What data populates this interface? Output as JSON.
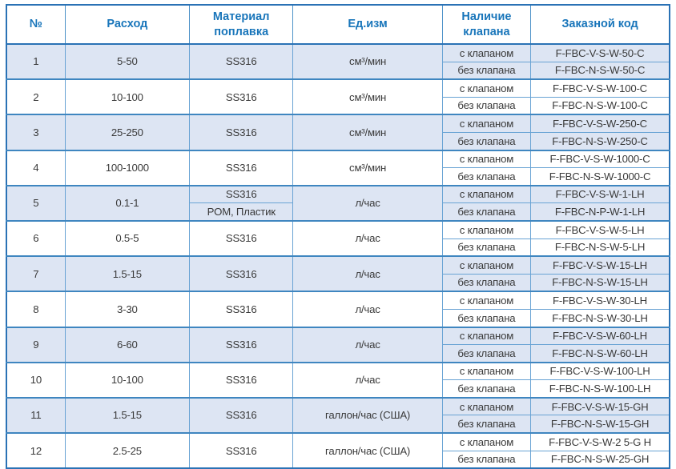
{
  "table": {
    "header": {
      "num": "№",
      "flow": "Расход",
      "material": "Материал поплавка",
      "unit": "Ед.изм",
      "valve": "Наличие клапана",
      "code": "Заказной код"
    },
    "valve_options": [
      "с клапаном",
      "без клапана"
    ],
    "rows": [
      {
        "num": "1",
        "flow": "5-50",
        "materials": [
          "SS316"
        ],
        "unit": "см³/мин",
        "codes": [
          "F-FBC-V-S-W-50-C",
          "F-FBC-N-S-W-50-C"
        ],
        "shaded": true
      },
      {
        "num": "2",
        "flow": "10-100",
        "materials": [
          "SS316"
        ],
        "unit": "см³/мин",
        "codes": [
          "F-FBC-V-S-W-100-C",
          "F-FBC-N-S-W-100-C"
        ],
        "shaded": false
      },
      {
        "num": "3",
        "flow": "25-250",
        "materials": [
          "SS316"
        ],
        "unit": "см³/мин",
        "codes": [
          "F-FBC-V-S-W-250-C",
          "F-FBC-N-S-W-250-C"
        ],
        "shaded": true
      },
      {
        "num": "4",
        "flow": "100-1000",
        "materials": [
          "SS316"
        ],
        "unit": "см³/мин",
        "codes": [
          "F-FBC-V-S-W-1000-C",
          "F-FBC-N-S-W-1000-C"
        ],
        "shaded": false
      },
      {
        "num": "5",
        "flow": "0.1-1",
        "materials": [
          "SS316",
          "POM, Пластик"
        ],
        "unit": "л/час",
        "codes": [
          "F-FBC-V-S-W-1-LH",
          "F-FBC-N-P-W-1-LH"
        ],
        "shaded": true
      },
      {
        "num": "6",
        "flow": "0.5-5",
        "materials": [
          "SS316"
        ],
        "unit": "л/час",
        "codes": [
          "F-FBC-V-S-W-5-LH",
          "F-FBC-N-S-W-5-LH"
        ],
        "shaded": false
      },
      {
        "num": "7",
        "flow": "1.5-15",
        "materials": [
          "SS316"
        ],
        "unit": "л/час",
        "codes": [
          "F-FBC-V-S-W-15-LH",
          "F-FBC-N-S-W-15-LH"
        ],
        "shaded": true
      },
      {
        "num": "8",
        "flow": "3-30",
        "materials": [
          "SS316"
        ],
        "unit": "л/час",
        "codes": [
          "F-FBC-V-S-W-30-LH",
          "F-FBC-N-S-W-30-LH"
        ],
        "shaded": false
      },
      {
        "num": "9",
        "flow": "6-60",
        "materials": [
          "SS316"
        ],
        "unit": "л/час",
        "codes": [
          "F-FBC-V-S-W-60-LH",
          "F-FBC-N-S-W-60-LH"
        ],
        "shaded": true
      },
      {
        "num": "10",
        "flow": "10-100",
        "materials": [
          "SS316"
        ],
        "unit": "л/час",
        "codes": [
          "F-FBC-V-S-W-100-LH",
          "F-FBC-N-S-W-100-LH"
        ],
        "shaded": false
      },
      {
        "num": "11",
        "flow": "1.5-15",
        "materials": [
          "SS316"
        ],
        "unit": "галлон/час (США)",
        "codes": [
          "F-FBC-V-S-W-15-GH",
          "F-FBC-N-S-W-15-GH"
        ],
        "shaded": true
      },
      {
        "num": "12",
        "flow": "2.5-25",
        "materials": [
          "SS316"
        ],
        "unit": "галлон/час (США)",
        "codes": [
          "F-FBC-V-S-W-2 5-G H",
          "F-FBC-N-S-W-25-GH"
        ],
        "shaded": false
      }
    ],
    "colors": {
      "header_text": "#1875ba",
      "border_outer": "#2a72b5",
      "border_inner": "#69a3d4",
      "row_shade": "#dde5f3",
      "body_text": "#3a3a3a"
    }
  }
}
